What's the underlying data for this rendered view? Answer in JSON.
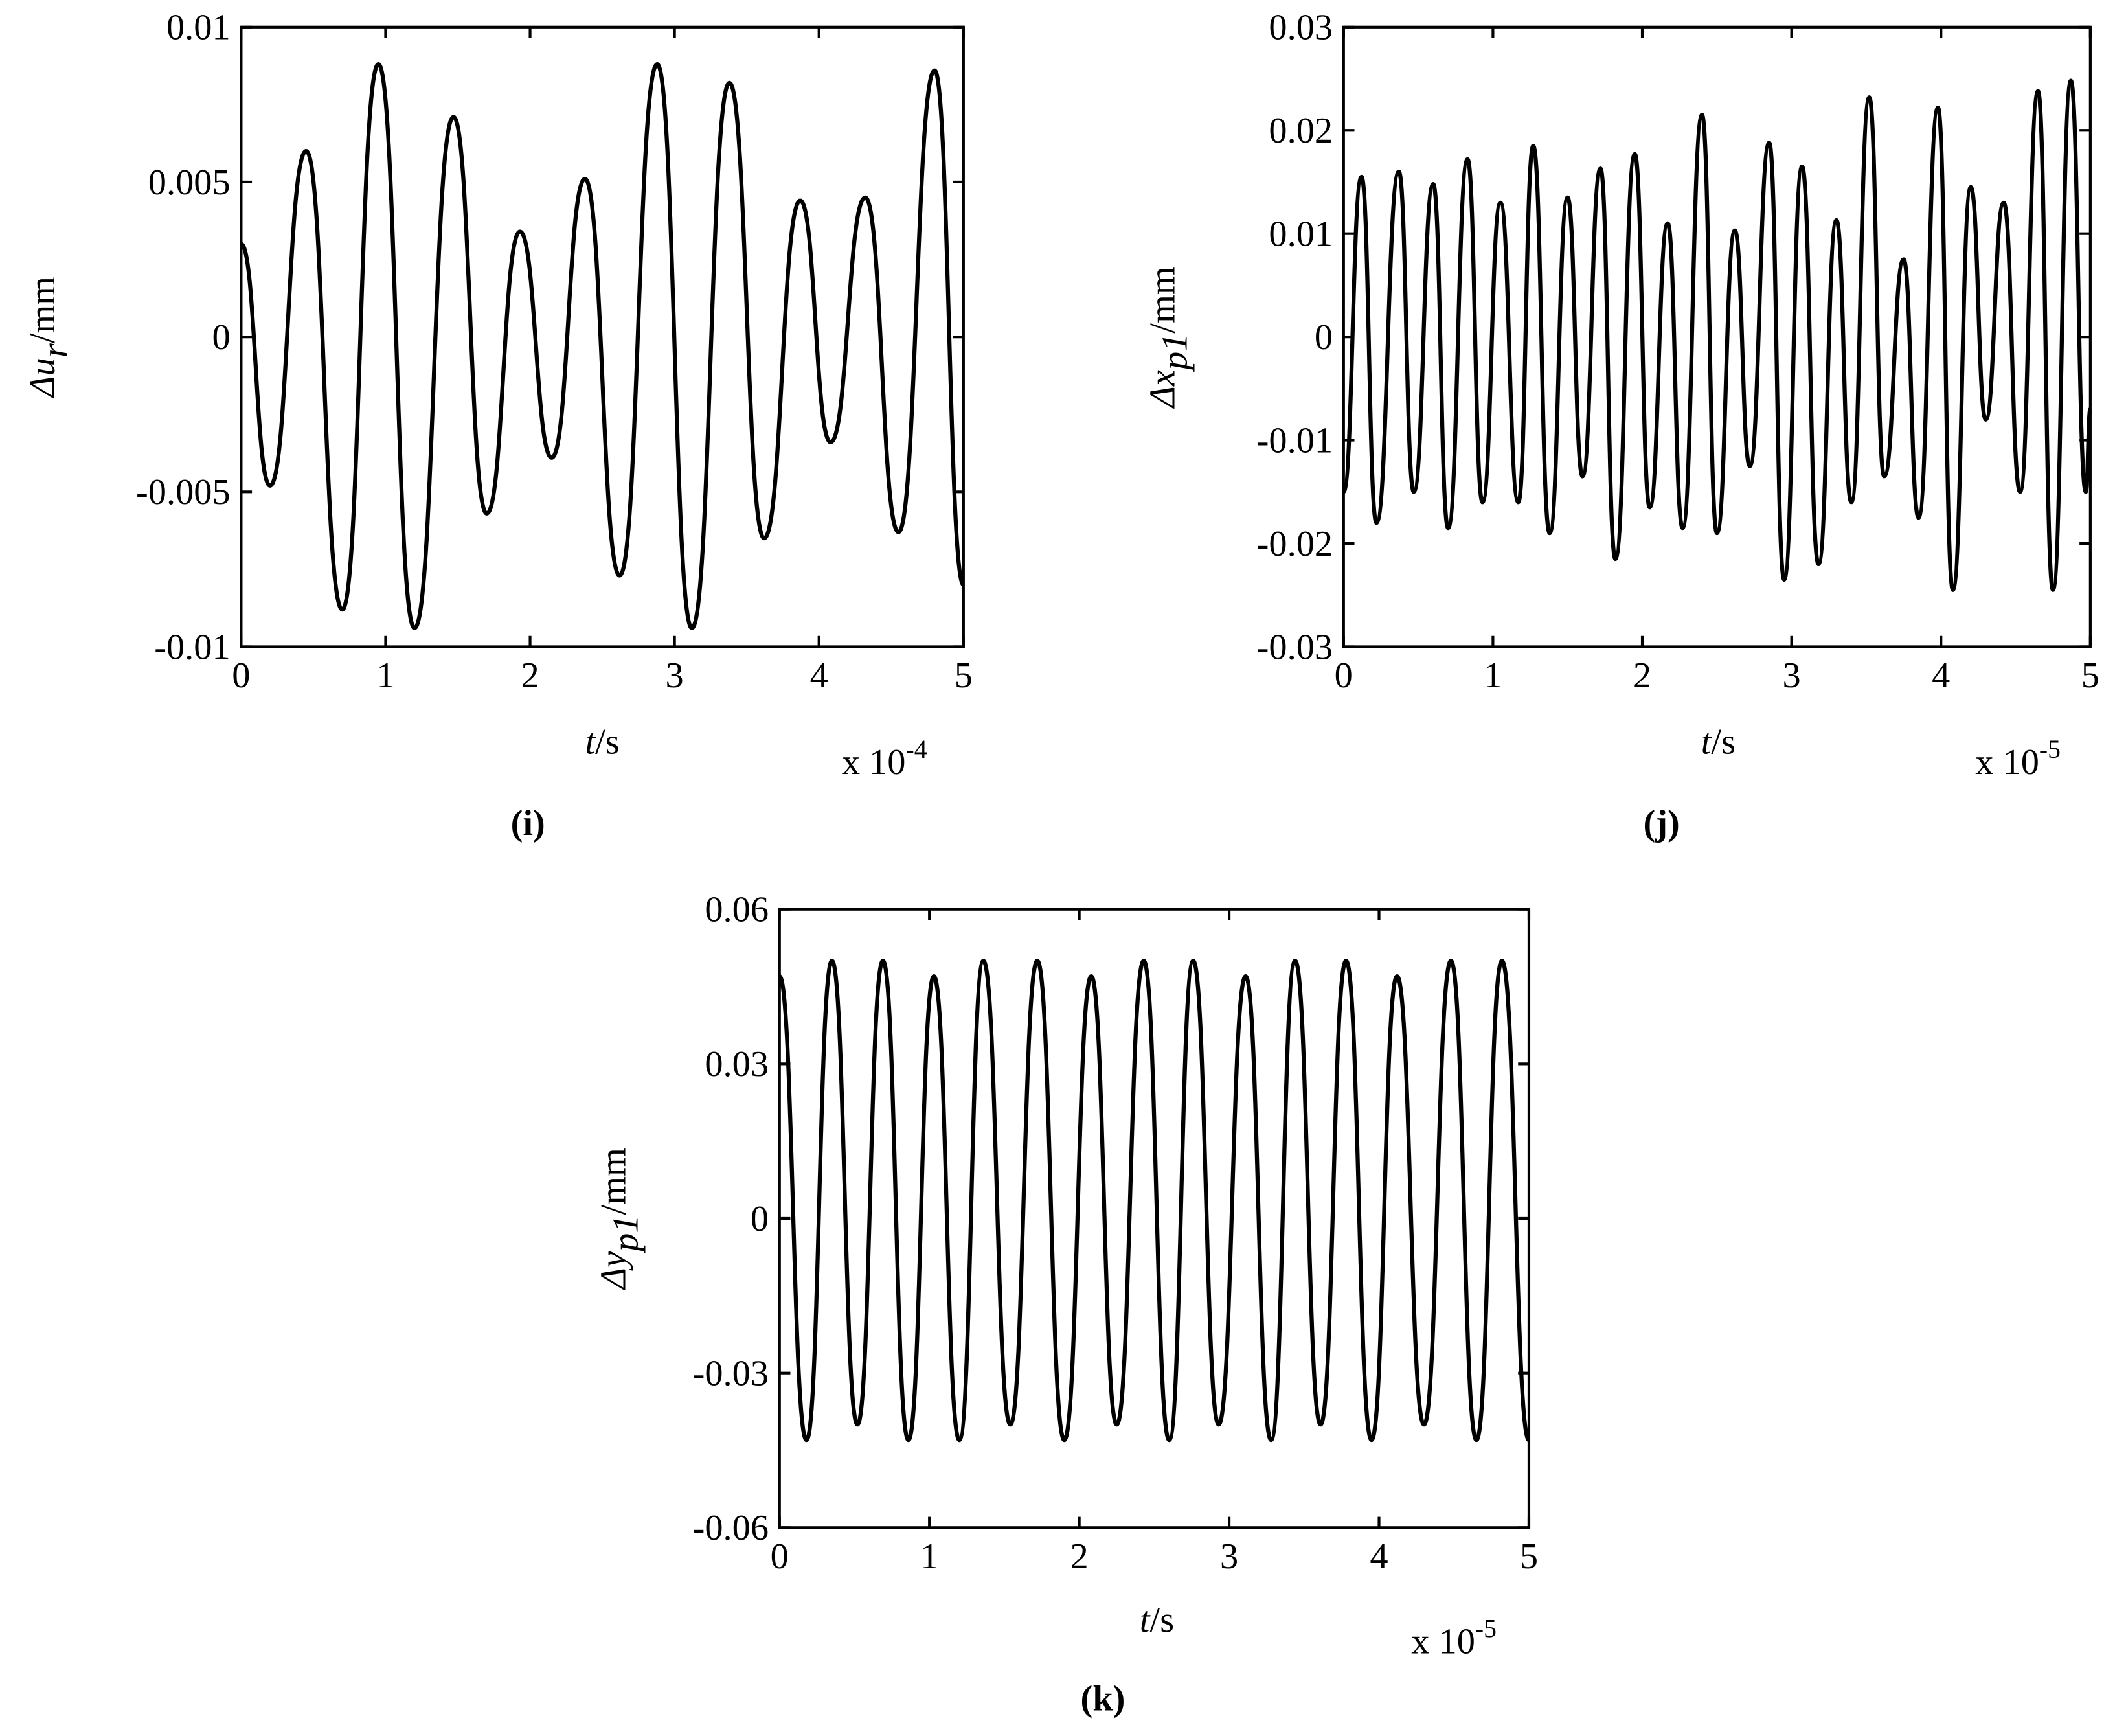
{
  "chart_data": [
    {
      "type": "line",
      "panel_label": "(i)",
      "xlabel": [
        "t",
        "/s"
      ],
      "ylabel": [
        "Δu",
        "r",
        "/mm"
      ],
      "x_multiplier": [
        "x 10",
        "-4"
      ],
      "xlim": [
        0,
        5
      ],
      "xticks": [
        0,
        1,
        2,
        3,
        4,
        5
      ],
      "ylim": [
        -0.01,
        0.01
      ],
      "yticks": [
        -0.01,
        -0.005,
        0,
        0.005,
        0.01
      ],
      "color": "#000000",
      "x": [
        0,
        0.2,
        0.45,
        0.7,
        0.95,
        1.2,
        1.47,
        1.7,
        1.93,
        2.15,
        2.38,
        2.62,
        2.88,
        3.12,
        3.38,
        3.62,
        3.87,
        4.08,
        4.32,
        4.55,
        4.8,
        5
      ],
      "values": [
        0.003,
        -0.0048,
        0.006,
        -0.0088,
        0.0088,
        -0.0094,
        0.0071,
        -0.0057,
        0.0034,
        -0.0039,
        0.0051,
        -0.0077,
        0.0088,
        -0.0094,
        0.0082,
        -0.0065,
        0.0044,
        -0.0034,
        0.0045,
        -0.0063,
        0.0086,
        -0.008
      ]
    },
    {
      "type": "line",
      "panel_label": "(j)",
      "xlabel": [
        "t",
        "/s"
      ],
      "ylabel": [
        "Δx",
        "p1",
        "/mm"
      ],
      "x_multiplier": [
        "x 10",
        "-5"
      ],
      "xlim": [
        0,
        5
      ],
      "xticks": [
        0,
        1,
        2,
        3,
        4,
        5
      ],
      "ylim": [
        -0.03,
        0.03
      ],
      "yticks": [
        -0.03,
        -0.02,
        -0.01,
        0,
        0.01,
        0.02,
        0.03
      ],
      "color": "#000000",
      "x": [
        0,
        0.12,
        0.22,
        0.37,
        0.47,
        0.6,
        0.7,
        0.83,
        0.93,
        1.05,
        1.17,
        1.27,
        1.38,
        1.5,
        1.6,
        1.72,
        1.82,
        1.95,
        2.05,
        2.17,
        2.27,
        2.4,
        2.5,
        2.62,
        2.72,
        2.85,
        2.95,
        3.07,
        3.18,
        3.3,
        3.4,
        3.52,
        3.62,
        3.75,
        3.85,
        3.98,
        4.08,
        4.2,
        4.3,
        4.42,
        4.53,
        4.65,
        4.75,
        4.87,
        4.97,
        5
      ],
      "values": [
        -0.015,
        0.0155,
        -0.018,
        0.016,
        -0.015,
        0.0148,
        -0.0185,
        0.0172,
        -0.016,
        0.013,
        -0.016,
        0.0185,
        -0.019,
        0.0135,
        -0.0135,
        0.0163,
        -0.0215,
        0.0177,
        -0.0165,
        0.011,
        -0.0185,
        0.0215,
        -0.019,
        0.0103,
        -0.0125,
        0.0188,
        -0.0235,
        0.0165,
        -0.022,
        0.0113,
        -0.016,
        0.0232,
        -0.0135,
        0.0075,
        -0.0175,
        0.0222,
        -0.0245,
        0.0145,
        -0.008,
        0.013,
        -0.015,
        0.0238,
        -0.0245,
        0.0248,
        -0.015,
        -0.007
      ]
    },
    {
      "type": "line",
      "panel_label": "(k)",
      "xlabel": [
        "t",
        "/s"
      ],
      "ylabel": [
        "Δy",
        "p1",
        "/mm"
      ],
      "x_multiplier": [
        "x 10",
        "-5"
      ],
      "xlim": [
        0,
        5
      ],
      "xticks": [
        0,
        1,
        2,
        3,
        4,
        5
      ],
      "ylim": [
        -0.06,
        0.06
      ],
      "yticks": [
        -0.06,
        -0.03,
        0,
        0.03,
        0.06
      ],
      "color": "#000000",
      "x": [
        0,
        0.18,
        0.35,
        0.52,
        0.69,
        0.86,
        1.03,
        1.2,
        1.36,
        1.54,
        1.72,
        1.9,
        2.08,
        2.25,
        2.43,
        2.6,
        2.76,
        2.93,
        3.11,
        3.28,
        3.44,
        3.61,
        3.78,
        3.95,
        4.12,
        4.3,
        4.48,
        4.65,
        4.82,
        5
      ],
      "values": [
        0.047,
        -0.043,
        0.05,
        -0.04,
        0.05,
        -0.043,
        0.047,
        -0.043,
        0.05,
        -0.04,
        0.05,
        -0.043,
        0.047,
        -0.04,
        0.05,
        -0.043,
        0.05,
        -0.04,
        0.047,
        -0.043,
        0.05,
        -0.04,
        0.05,
        -0.043,
        0.047,
        -0.04,
        0.05,
        -0.043,
        0.05,
        -0.043
      ]
    }
  ]
}
